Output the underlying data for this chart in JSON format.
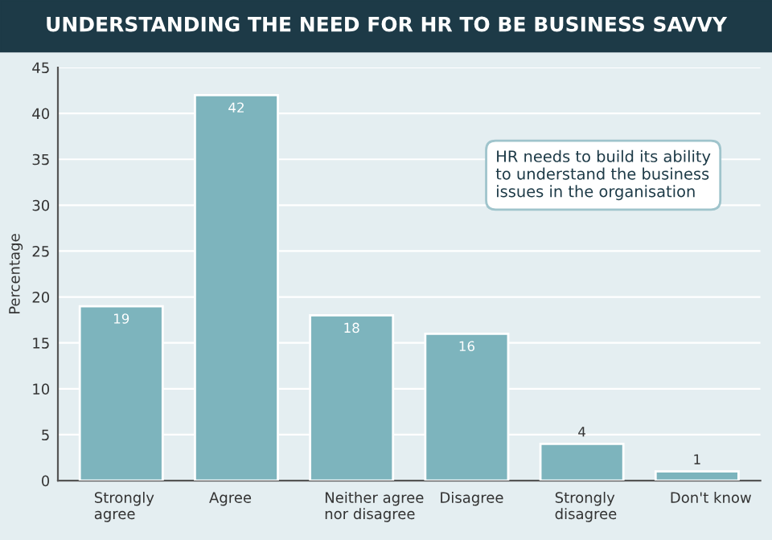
{
  "chart_data": {
    "type": "bar",
    "title": "UNDERSTANDING THE NEED FOR HR TO BE BUSINESS SAVVY",
    "ylabel": "Percentage",
    "categories": [
      "Strongly\nagree",
      "Agree",
      "Neither agree\nnor disagree",
      "Disagree",
      "Strongly\ndisagree",
      "Don't know"
    ],
    "values": [
      19,
      42,
      18,
      16,
      4,
      1
    ],
    "color": "#7db4bd",
    "ylim": [
      0,
      45
    ],
    "yticks": [
      0,
      5,
      10,
      15,
      20,
      25,
      30,
      35,
      40,
      45
    ],
    "grid": "y",
    "data_labels": true,
    "annotations": [
      "HR needs to build its ability\nto understand the business\nissues in the organisation"
    ]
  }
}
